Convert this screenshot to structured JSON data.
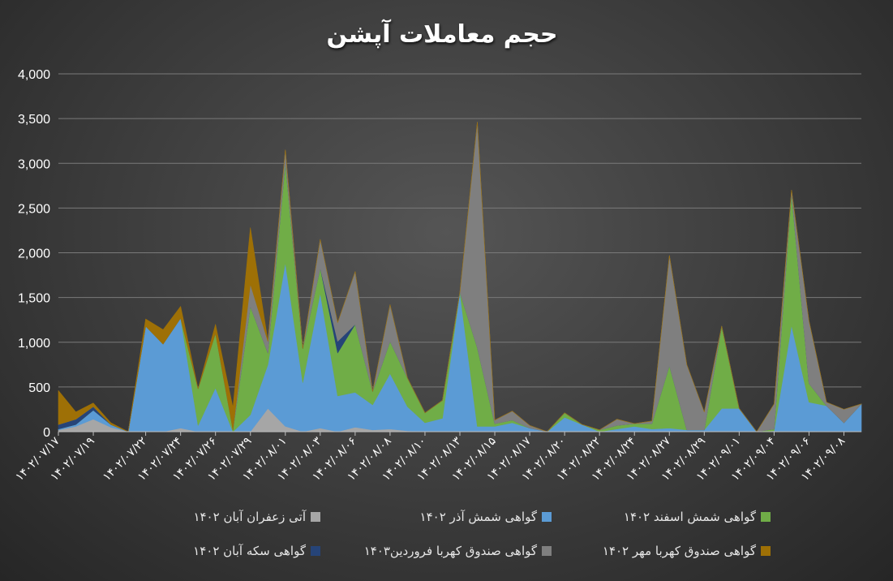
{
  "chart_data": {
    "type": "area",
    "title": "حجم معاملات آپشن",
    "ylim": [
      0,
      4000
    ],
    "yticks": [
      "0",
      "500",
      "1,000",
      "1,500",
      "2,000",
      "2,500",
      "3,000",
      "3,500",
      "4,000"
    ],
    "x": [
      "۱۴۰۲/۰۷/۱۷",
      "۱۴۰۲/۰۷/۱۸",
      "۱۴۰۲/۰۷/۱۹",
      "۱۴۰۲/۰۷/۲۰",
      "۱۴۰۲/۰۷/۲۱",
      "۱۴۰۲/۰۷/۲۲",
      "۱۴۰۲/۰۷/۲۳",
      "۱۴۰۲/۰۷/۲۴",
      "۱۴۰۲/۰۷/۲۵",
      "۱۴۰۲/۰۷/۲۶",
      "۱۴۰۲/۰۷/۲۷",
      "۱۴۰۲/۰۷/۲۹",
      "۱۴۰۲/۰۷/۳۰",
      "۱۴۰۲/۰۸/۰۱",
      "۱۴۰۲/۰۸/۰۲",
      "۱۴۰۲/۰۸/۰۳",
      "۱۴۰۲/۰۸/۰۵",
      "۱۴۰۲/۰۸/۰۶",
      "۱۴۰۲/۰۸/۰۷",
      "۱۴۰۲/۰۸/۰۸",
      "۱۴۰۲/۰۸/۰۹",
      "۱۴۰۲/۰۸/۱۰",
      "۱۴۰۲/۰۸/۱۲",
      "۱۴۰۲/۰۸/۱۳",
      "۱۴۰۲/۰۸/۱۴",
      "۱۴۰۲/۰۸/۱۵",
      "۱۴۰۲/۰۸/۱۶",
      "۱۴۰۲/۰۸/۱۷",
      "۱۴۰۲/۰۸/۱۹",
      "۱۴۰۲/۰۸/۲۰",
      "۱۴۰۲/۰۸/۲۱",
      "۱۴۰۲/۰۸/۲۲",
      "۱۴۰۲/۰۸/۲۳",
      "۱۴۰۲/۰۸/۲۴",
      "۱۴۰۲/۰۸/۲۶",
      "۱۴۰۲/۰۸/۲۷",
      "۱۴۰۲/۰۸/۲۸",
      "۱۴۰۲/۰۸/۲۹",
      "۱۴۰۲/۰۸/۳۰",
      "۱۴۰۲/۰۹/۰۱",
      "۱۴۰۲/۰۹/۰۳",
      "۱۴۰۲/۰۹/۰۴",
      "۱۴۰۲/۰۹/۰۵",
      "۱۴۰۲/۰۹/۰۶",
      "۱۴۰۲/۰۹/۰۷",
      "۱۴۰۲/۰۹/۰۸",
      "۱۴۰۲/۰۹/۱۰"
    ],
    "tick_indices": [
      0,
      2,
      5,
      7,
      9,
      11,
      13,
      15,
      17,
      19,
      21,
      23,
      25,
      27,
      29,
      31,
      33,
      35,
      37,
      39,
      41,
      43,
      45
    ],
    "series": [
      {
        "name": "آتی زعفران آبان ۱۴۰۲",
        "color": "#a6a6a6",
        "values": [
          20,
          60,
          140,
          50,
          0,
          0,
          0,
          40,
          0,
          0,
          0,
          0,
          260,
          60,
          0,
          40,
          0,
          50,
          20,
          30,
          10,
          0,
          0,
          0,
          0,
          0,
          0,
          0,
          0,
          0,
          0,
          0,
          0,
          0,
          0,
          0,
          0,
          0,
          0,
          0,
          0,
          0,
          0,
          0,
          0,
          0,
          0
        ]
      },
      {
        "name": "گواهی شمش آذر ۱۴۰۲",
        "color": "#5b9bd5",
        "values": [
          10,
          20,
          100,
          30,
          0,
          1180,
          980,
          1230,
          70,
          490,
          0,
          190,
          490,
          1830,
          550,
          1510,
          400,
          390,
          280,
          620,
          270,
          100,
          150,
          1560,
          60,
          60,
          100,
          40,
          0,
          160,
          80,
          0,
          30,
          60,
          30,
          40,
          20,
          20,
          260,
          260,
          0,
          10,
          1190,
          330,
          290,
          100,
          310
        ]
      },
      {
        "name": "گواهی شمش اسفند ۱۴۰۲",
        "color": "#70ad47",
        "values": [
          0,
          0,
          0,
          0,
          0,
          0,
          0,
          0,
          410,
          610,
          20,
          1210,
          130,
          1120,
          380,
          280,
          480,
          760,
          150,
          360,
          320,
          110,
          200,
          0,
          880,
          30,
          30,
          0,
          0,
          50,
          0,
          20,
          40,
          30,
          60,
          700,
          0,
          0,
          920,
          0,
          0,
          20,
          1480,
          210,
          0,
          0,
          0
        ]
      },
      {
        "name": "گواهی سکه آبان ۱۴۰۲",
        "color": "#264478",
        "values": [
          50,
          60,
          40,
          0,
          0,
          0,
          0,
          0,
          0,
          0,
          0,
          0,
          0,
          0,
          0,
          0,
          130,
          0,
          0,
          0,
          0,
          0,
          0,
          0,
          0,
          0,
          0,
          0,
          0,
          0,
          0,
          0,
          0,
          0,
          0,
          0,
          0,
          0,
          0,
          0,
          0,
          0,
          0,
          0,
          0,
          0,
          0
        ]
      },
      {
        "name": "گواهی صندوق کهربا فروردین۱۴۰۳",
        "color": "#7f7f7f",
        "values": [
          0,
          0,
          0,
          0,
          0,
          0,
          0,
          0,
          0,
          0,
          0,
          250,
          130,
          140,
          0,
          320,
          210,
          590,
          0,
          410,
          0,
          0,
          0,
          0,
          2520,
          40,
          100,
          30,
          0,
          0,
          0,
          0,
          70,
          0,
          30,
          1230,
          730,
          200,
          0,
          0,
          0,
          280,
          30,
          700,
          40,
          150,
          0
        ]
      },
      {
        "name": "گواهی صندوق کهربا مهر ۱۴۰۲",
        "color": "#9e7006",
        "values": [
          380,
          80,
          40,
          20,
          0,
          80,
          160,
          130,
          0,
          100,
          250,
          630,
          0,
          0,
          0,
          0,
          0,
          0,
          0,
          0,
          0,
          0,
          0,
          0,
          0,
          0,
          0,
          0,
          0,
          0,
          0,
          0,
          0,
          0,
          0,
          0,
          0,
          0,
          0,
          0,
          0,
          0,
          0,
          0,
          0,
          0,
          0
        ]
      }
    ],
    "legend": {
      "position": "bottom"
    },
    "grid": true
  }
}
